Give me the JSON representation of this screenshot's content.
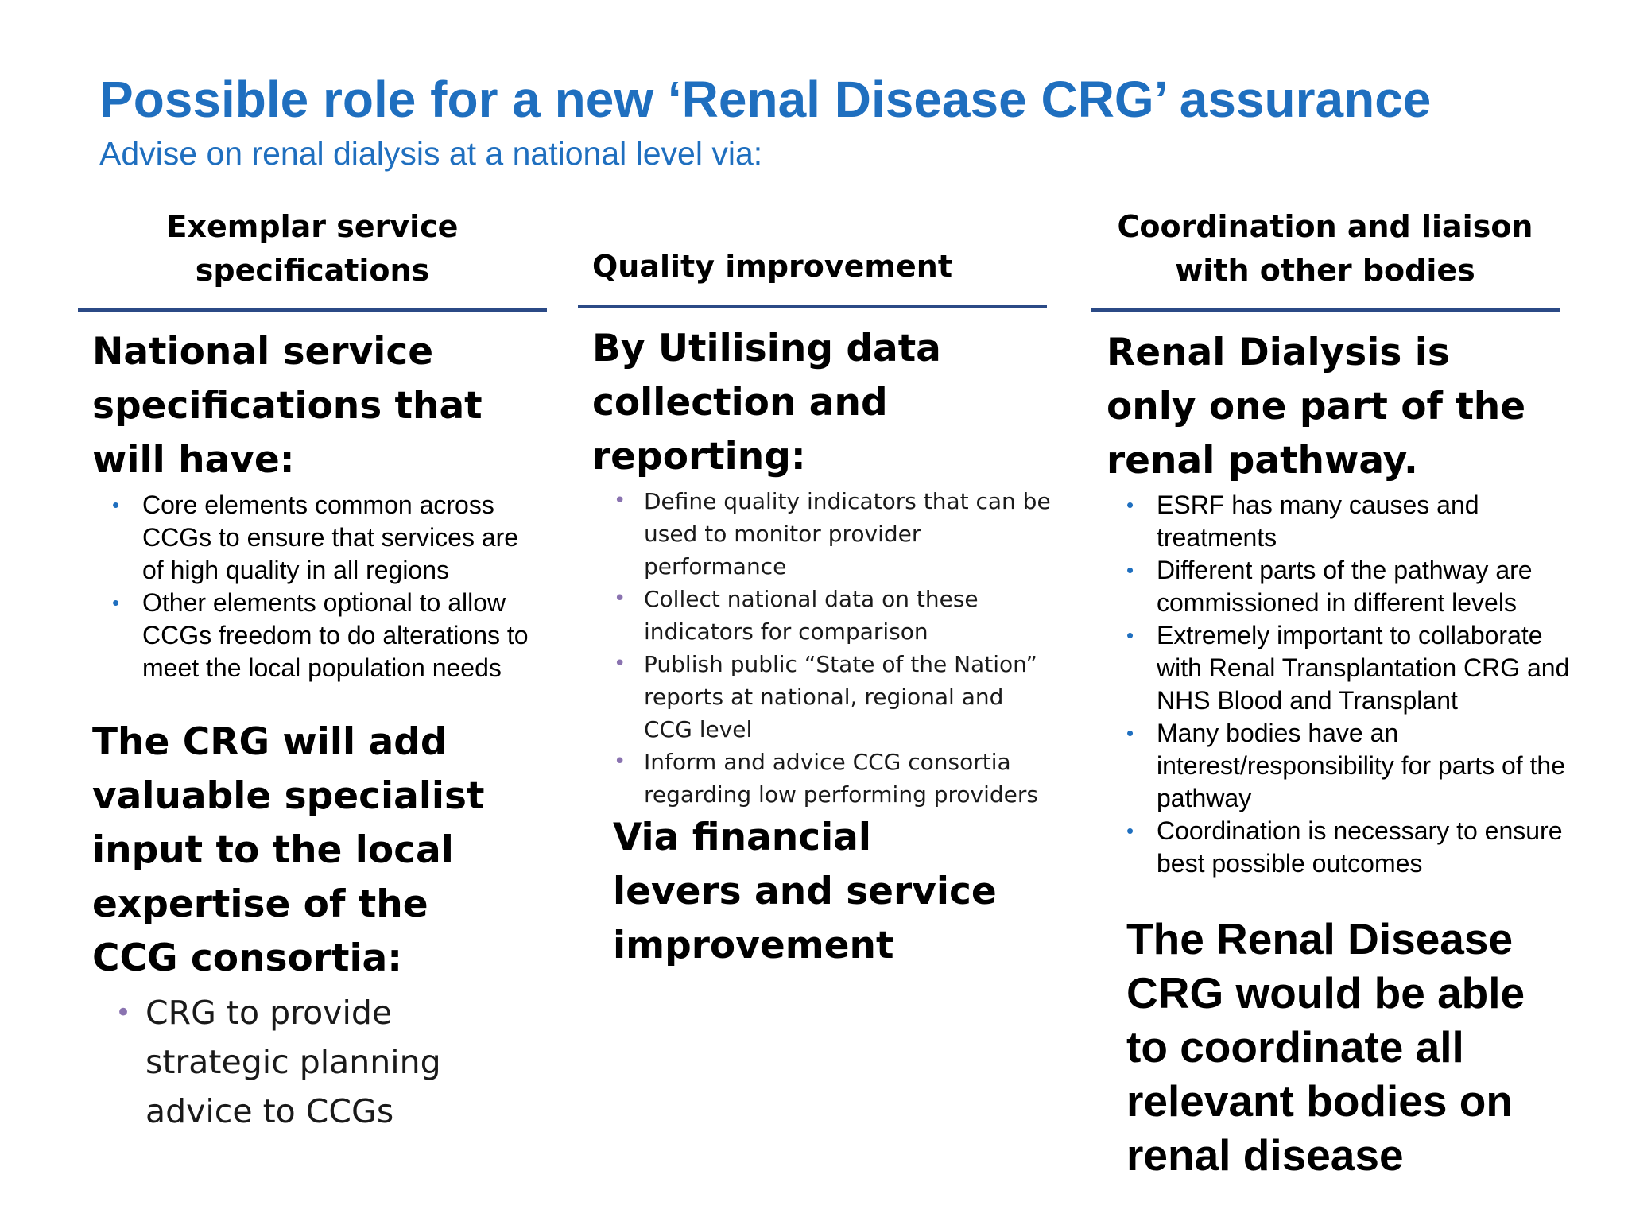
{
  "title": "Possible role for a new ‘Renal Disease CRG’ assurance",
  "subtitle": "Advise on renal dialysis at a national level via:",
  "columns": [
    {
      "heading_lines": [
        "Exemplar service",
        "specifications"
      ],
      "intro": "National service specifications that will have:",
      "bullets": [
        "Core elements common across CCGs to ensure that services are of high quality in all regions",
        "Other elements optional to allow CCGs freedom to do alterations to meet the local population needs"
      ],
      "statement": "The CRG will add valuable specialist input to the local expertise of the CCG consortia:",
      "sub_bullets": [
        "CRG to provide strategic planning advice to CCGs"
      ]
    },
    {
      "heading_lines": [
        "Quality improvement"
      ],
      "intro": "By Utilising data collection and reporting:",
      "bullets": [
        "Define quality indicators that can be used to monitor provider performance",
        "Collect national data on these indicators for comparison",
        "Publish public “State of the Nation” reports at national, regional and CCG level",
        "Inform and advice CCG consortia regarding low performing providers"
      ],
      "statement": "Via financial levers and service improvement"
    },
    {
      "heading_lines": [
        "Coordination and liaison",
        "with other bodies"
      ],
      "intro": "Renal Dialysis is only one part of the renal pathway.",
      "bullets": [
        "ESRF has many causes and treatments",
        "Different parts of the pathway are commissioned in different levels",
        "Extremely important to collaborate with Renal Transplantation CRG and NHS Blood and Transplant",
        "Many bodies have an interest/responsibility for parts of the pathway",
        "Coordination is necessary to ensure best possible outcomes"
      ],
      "statement": "The Renal Disease CRG would be able to coordinate all relevant bodies on renal disease"
    }
  ],
  "colors": {
    "title": "#1f6fbf",
    "rule": "#2b4a86",
    "bullet_blue": "#1f6fbf",
    "bullet_purple": "#8a73b0"
  },
  "bullet_glyph": "•"
}
